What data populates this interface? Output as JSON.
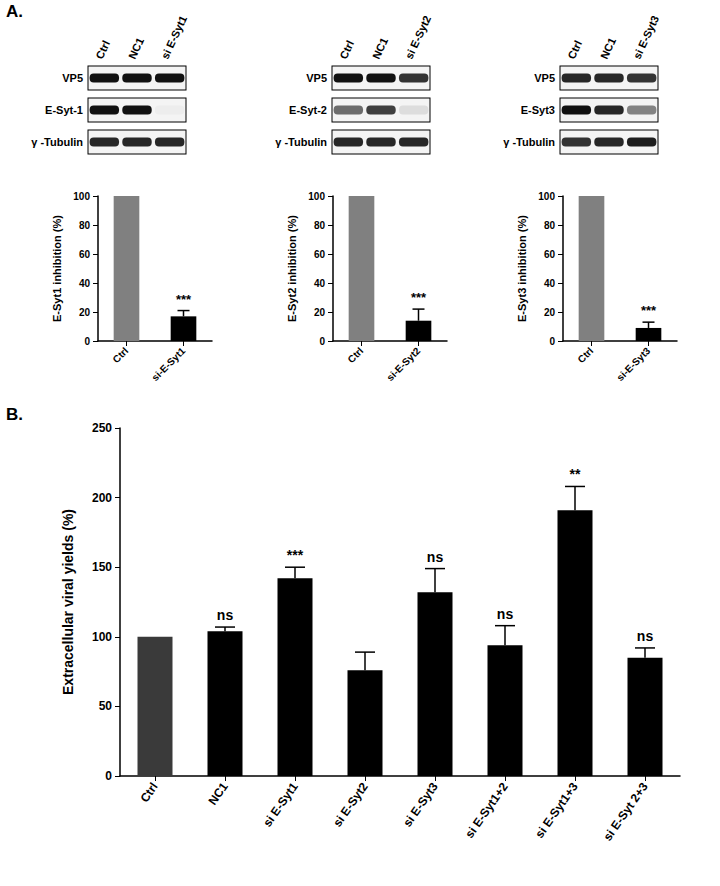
{
  "panel_labels": [
    "A.",
    "B."
  ],
  "blots": [
    {
      "lanes": [
        "Ctrl",
        "NC1",
        "si E-Syt1"
      ],
      "rows": [
        {
          "label": "VP5",
          "band_intensity": [
            1,
            1,
            1
          ]
        },
        {
          "label": "E-Syt-1",
          "band_intensity": [
            1,
            1,
            0.03
          ]
        },
        {
          "label": "γ -Tubulin",
          "band_intensity": [
            0.9,
            0.9,
            0.9
          ]
        }
      ]
    },
    {
      "lanes": [
        "Ctrl",
        "NC1",
        "si E-Syt2"
      ],
      "rows": [
        {
          "label": "VP5",
          "band_intensity": [
            1,
            1,
            0.85
          ]
        },
        {
          "label": "E-Syt-2",
          "band_intensity": [
            0.6,
            0.8,
            0.1
          ]
        },
        {
          "label": "γ -Tubulin",
          "band_intensity": [
            0.9,
            0.9,
            0.9
          ]
        }
      ]
    },
    {
      "lanes": [
        "Ctrl",
        "NC1",
        "si E-Syt3"
      ],
      "rows": [
        {
          "label": "VP5",
          "band_intensity": [
            0.9,
            0.9,
            0.85
          ]
        },
        {
          "label": "E-Syt3",
          "band_intensity": [
            1,
            0.9,
            0.5
          ]
        },
        {
          "label": "γ -Tubulin",
          "band_intensity": [
            0.85,
            0.9,
            0.95
          ]
        }
      ]
    }
  ],
  "chart_data": [
    {
      "type": "bar",
      "categories": [
        "Ctrl",
        "si-E-Syt1"
      ],
      "values": [
        100,
        17
      ],
      "errors": [
        null,
        4
      ],
      "colors": [
        "#808080",
        "#000000"
      ],
      "annotations": [
        null,
        "***"
      ],
      "y_label": "E-Syt1 inhibition (%)",
      "ylim": [
        0,
        100
      ],
      "yticks": [
        0,
        20,
        40,
        60,
        80,
        100
      ],
      "grid": false
    },
    {
      "type": "bar",
      "categories": [
        "Ctrl",
        "si-E-Syt2"
      ],
      "values": [
        100,
        14
      ],
      "errors": [
        null,
        8
      ],
      "colors": [
        "#808080",
        "#000000"
      ],
      "annotations": [
        null,
        "***"
      ],
      "y_label": "E-Syt2 inhibition (%)",
      "ylim": [
        0,
        100
      ],
      "yticks": [
        0,
        20,
        40,
        60,
        80,
        100
      ],
      "grid": false
    },
    {
      "type": "bar",
      "categories": [
        "Ctrl",
        "si-E-Syt3"
      ],
      "values": [
        100,
        9
      ],
      "errors": [
        null,
        4
      ],
      "colors": [
        "#808080",
        "#000000"
      ],
      "annotations": [
        null,
        "***"
      ],
      "y_label": "E-Syt3 inhibition (%)",
      "ylim": [
        0,
        100
      ],
      "yticks": [
        0,
        20,
        40,
        60,
        80,
        100
      ],
      "grid": false
    },
    {
      "type": "bar",
      "categories": [
        "Ctrl",
        "NC1",
        "si E-Syt1",
        "si E-Syt2",
        "si E-Syt3",
        "si E-Syt1+2",
        "si E-Syt1+3",
        "si E-Syt 2+3"
      ],
      "values": [
        100,
        104,
        142,
        76,
        132,
        94,
        191,
        85
      ],
      "errors": [
        null,
        3,
        8,
        13,
        17,
        14,
        17,
        7
      ],
      "colors": [
        "#3a3a3a",
        "#000000",
        "#000000",
        "#000000",
        "#000000",
        "#000000",
        "#000000",
        "#000000"
      ],
      "annotations": [
        null,
        "ns",
        "***",
        null,
        "ns",
        "ns",
        "**",
        "ns"
      ],
      "y_label": "Extracellular viral yields (%)",
      "ylim": [
        0,
        250
      ],
      "yticks": [
        0,
        50,
        100,
        150,
        200,
        250
      ],
      "grid": false
    }
  ]
}
